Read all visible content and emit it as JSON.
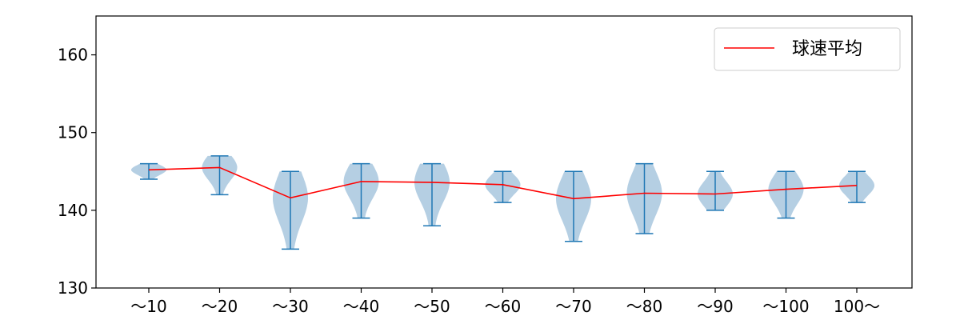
{
  "chart_data": {
    "type": "violin",
    "title": "",
    "xlabel": "",
    "ylabel": "",
    "ylim": [
      130,
      165
    ],
    "yticks": [
      130,
      140,
      150,
      160
    ],
    "categories": [
      "～10",
      "～20",
      "～30",
      "～40",
      "～50",
      "～60",
      "～70",
      "～80",
      "～90",
      "～100",
      "100～"
    ],
    "distributions": [
      {
        "min": 144,
        "max": 146,
        "mean": 145.2
      },
      {
        "min": 142,
        "max": 147,
        "mean": 145.5
      },
      {
        "min": 135,
        "max": 145,
        "mean": 141.6
      },
      {
        "min": 139,
        "max": 146,
        "mean": 143.7
      },
      {
        "min": 138,
        "max": 146,
        "mean": 143.6
      },
      {
        "min": 141,
        "max": 145,
        "mean": 143.3
      },
      {
        "min": 136,
        "max": 145,
        "mean": 141.5
      },
      {
        "min": 137,
        "max": 146,
        "mean": 142.2
      },
      {
        "min": 140,
        "max": 145,
        "mean": 142.1
      },
      {
        "min": 139,
        "max": 145,
        "mean": 142.7
      },
      {
        "min": 141,
        "max": 145,
        "mean": 143.2
      }
    ],
    "series": [
      {
        "name": "球速平均",
        "values": [
          145.2,
          145.5,
          141.6,
          143.7,
          143.6,
          143.3,
          141.5,
          142.2,
          142.1,
          142.7,
          143.2
        ],
        "color": "#ff0000"
      }
    ],
    "legend": {
      "position": "top-right",
      "label": "球速平均"
    },
    "grid": false,
    "colors": {
      "violin_fill": "#b5cfe3",
      "violin_line": "#1f77b4",
      "mean_line": "#ff0000"
    }
  }
}
